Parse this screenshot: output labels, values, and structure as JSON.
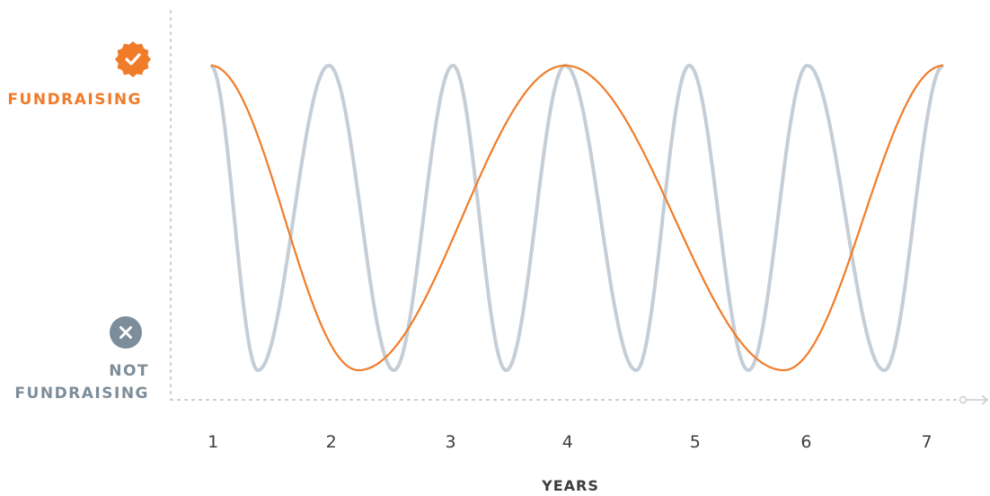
{
  "colors": {
    "fundraising": "#f07c2a",
    "cycle": "#c5ced6",
    "not_fundraising_badge": "#7d8d99",
    "axis": "#cccccc",
    "tick_text": "#3d3d3d"
  },
  "icons": {
    "top": "check-badge-icon",
    "bottom": "x-circle-icon"
  },
  "labels": {
    "top": "FUNDRAISING",
    "bottom_line1": "NOT",
    "bottom_line2": "FUNDRAISING"
  },
  "chart_data": {
    "type": "line",
    "xlabel": "YEARS",
    "x_ticks": [
      "1",
      "2",
      "3",
      "4",
      "5",
      "6",
      "7"
    ],
    "ylabel_top": "FUNDRAISING",
    "ylabel_bottom": "NOT FUNDRAISING",
    "ylim": [
      0,
      1
    ],
    "xlim": [
      0.95,
      7.2
    ],
    "grid": false,
    "series": [
      {
        "color": "#c5ced6",
        "peaks_at_x": [
          1.0,
          2.0,
          3.05,
          4.0,
          5.05,
          6.05,
          7.2
        ],
        "troughs_at_x": [
          1.4,
          2.55,
          3.5,
          4.6,
          5.55,
          6.7
        ],
        "peak_value": 0.98,
        "trough_value": 0.0
      },
      {
        "color": "#f07c2a",
        "peaks_at_x": [
          1.0,
          4.0,
          7.2
        ],
        "troughs_at_x": [
          2.25,
          5.85
        ],
        "peak_value": 0.98,
        "trough_value": 0.0
      }
    ]
  }
}
